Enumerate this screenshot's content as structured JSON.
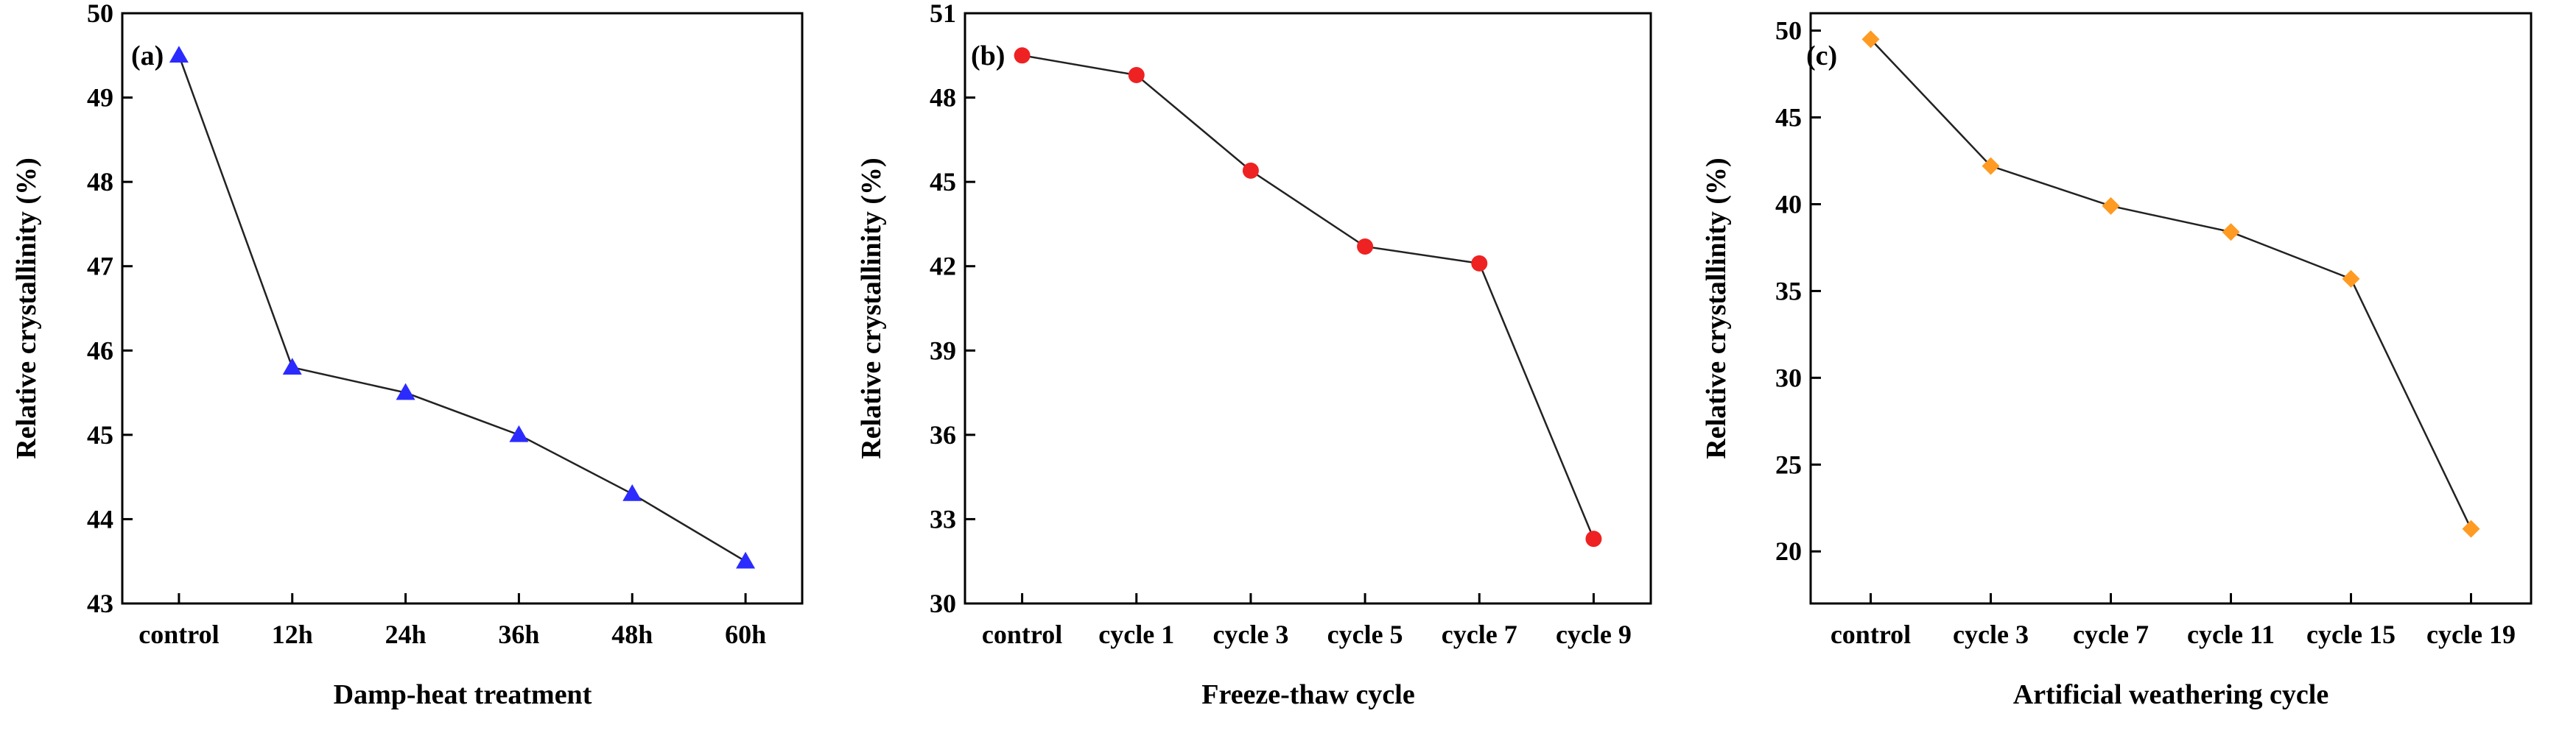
{
  "chart_data": [
    {
      "type": "line",
      "panel_label": "(a)",
      "categories": [
        "control",
        "12h",
        "24h",
        "36h",
        "48h",
        "60h"
      ],
      "values": [
        49.5,
        45.8,
        45.5,
        45.0,
        44.3,
        43.5
      ],
      "xlabel": "Damp-heat treatment",
      "ylabel": "Relative crystallinity (%)",
      "ylim": [
        43,
        50
      ],
      "yticks": [
        43,
        44,
        45,
        46,
        47,
        48,
        49,
        50
      ],
      "marker": "triangle",
      "color": "#2b2bff",
      "grid": false
    },
    {
      "type": "line",
      "panel_label": "(b)",
      "categories": [
        "control",
        "cycle 1",
        "cycle 3",
        "cycle 5",
        "cycle 7",
        "cycle 9"
      ],
      "values": [
        49.5,
        48.8,
        45.4,
        42.7,
        42.1,
        32.3
      ],
      "xlabel": "Freeze-thaw cycle",
      "ylabel": "Relative crystallinity (%)",
      "ylim": [
        30,
        51
      ],
      "yticks": [
        30,
        33,
        36,
        39,
        42,
        45,
        48,
        51
      ],
      "marker": "circle",
      "color": "#ee2222",
      "grid": false
    },
    {
      "type": "line",
      "panel_label": "(c)",
      "categories": [
        "control",
        "cycle 3",
        "cycle 7",
        "cycle 11",
        "cycle 15",
        "cycle 19"
      ],
      "values": [
        49.5,
        42.2,
        39.9,
        38.4,
        35.7,
        21.3
      ],
      "xlabel": "Artificial weathering cycle",
      "ylabel": "Relative crystallinity (%)",
      "ylim": [
        17,
        51
      ],
      "yticks": [
        20,
        25,
        30,
        35,
        40,
        45,
        50
      ],
      "marker": "diamond",
      "color": "#ff9a22",
      "grid": false
    }
  ]
}
